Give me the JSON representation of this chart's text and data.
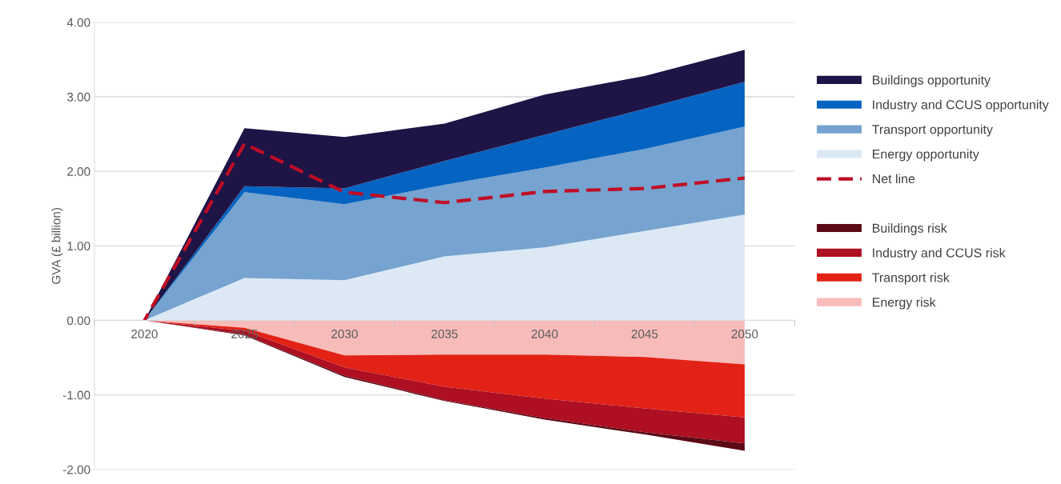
{
  "chart_data": [
    {
      "type": "area",
      "stacked": true,
      "ylabel": "GVA (£ billion)",
      "categories": [
        "2020",
        "2025",
        "2030",
        "2035",
        "2040",
        "2045",
        "2050"
      ],
      "ylim": [
        0,
        4
      ],
      "yticks": [
        {
          "value": 0,
          "label": "0.00"
        },
        {
          "value": 1,
          "label": "1.00"
        },
        {
          "value": 2,
          "label": "2.00"
        },
        {
          "value": 3,
          "label": "3.00"
        },
        {
          "value": 4,
          "label": "4.00"
        }
      ],
      "grid": "y",
      "legend": "right",
      "tick_labels": "y",
      "series": [
        {
          "name": "Energy opportunity",
          "color": "#dce9f5",
          "values": [
            0,
            0.57,
            0.54,
            0.86,
            0.98,
            1.2,
            1.42
          ]
        },
        {
          "name": "Transport opportunity",
          "color": "#76a3cf",
          "values": [
            0,
            1.15,
            1.02,
            0.96,
            1.07,
            1.1,
            1.18
          ]
        },
        {
          "name": "Industry and CCUS opportunity",
          "color": "#0563c1",
          "values": [
            0,
            0.08,
            0.21,
            0.32,
            0.44,
            0.54,
            0.6
          ]
        },
        {
          "name": "Buildings opportunity",
          "color": "#1e1446",
          "values": [
            0,
            0.78,
            0.69,
            0.5,
            0.54,
            0.44,
            0.43
          ]
        },
        {
          "name": "Net line",
          "type": "line",
          "line_style": "dashed",
          "marker": "none",
          "color": "#c00d25",
          "values": [
            0,
            2.37,
            1.72,
            1.58,
            1.73,
            1.77,
            1.91
          ]
        }
      ]
    },
    {
      "type": "area",
      "stacked": true,
      "categories": [
        "2020",
        "2025",
        "2030",
        "2035",
        "2040",
        "2045",
        "2050"
      ],
      "ylim": [
        -2,
        0
      ],
      "yticks": [
        {
          "value": -2,
          "label": "-2.00"
        },
        {
          "value": -1,
          "label": "-1.00"
        }
      ],
      "grid": "y",
      "legend": "right",
      "series": [
        {
          "name": "Energy risk",
          "color": "#f7bcba",
          "values": [
            0,
            -0.1,
            -0.47,
            -0.46,
            -0.46,
            -0.49,
            -0.59
          ]
        },
        {
          "name": "Transport risk",
          "color": "#e32216",
          "values": [
            0,
            -0.04,
            -0.16,
            -0.43,
            -0.59,
            -0.69,
            -0.71
          ]
        },
        {
          "name": "Industry and CCUS risk",
          "color": "#ae0f22",
          "values": [
            0,
            -0.05,
            -0.11,
            -0.18,
            -0.26,
            -0.32,
            -0.35
          ]
        },
        {
          "name": "Buildings risk",
          "color": "#5c0a16",
          "values": [
            0,
            -0.01,
            -0.02,
            -0.01,
            -0.02,
            -0.03,
            -0.1
          ]
        }
      ]
    }
  ]
}
